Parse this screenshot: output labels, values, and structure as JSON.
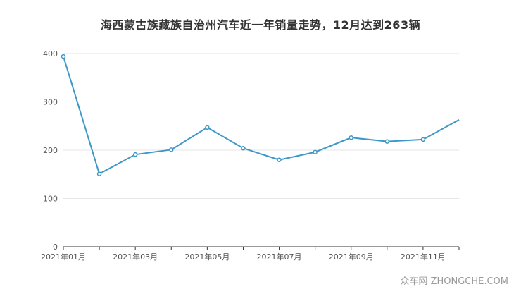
{
  "chart_data": {
    "type": "line",
    "title": "海西蒙古族藏族自治州汽车近一年销量走势，12月达到263辆",
    "xlabel": "",
    "ylabel": "",
    "ylim": [
      0,
      400
    ],
    "yticks": [
      0,
      100,
      200,
      300,
      400
    ],
    "x": [
      "2021年01月",
      "2021年02月",
      "2021年03月",
      "2021年04月",
      "2021年05月",
      "2021年06月",
      "2021年07月",
      "2021年08月",
      "2021年09月",
      "2021年10月",
      "2021年11月",
      "2021年12月"
    ],
    "xtick_labels_shown": [
      "2021年01月",
      "2021年03月",
      "2021年05月",
      "2021年07月",
      "2021年09月",
      "2021年11月"
    ],
    "series": [
      {
        "values": [
          394,
          151,
          191,
          201,
          247,
          204,
          180,
          196,
          226,
          218,
          222,
          263
        ]
      }
    ],
    "grid": true,
    "line_color": "#3d98c8"
  },
  "watermark": "众车网 ZHONGCHE.COM"
}
